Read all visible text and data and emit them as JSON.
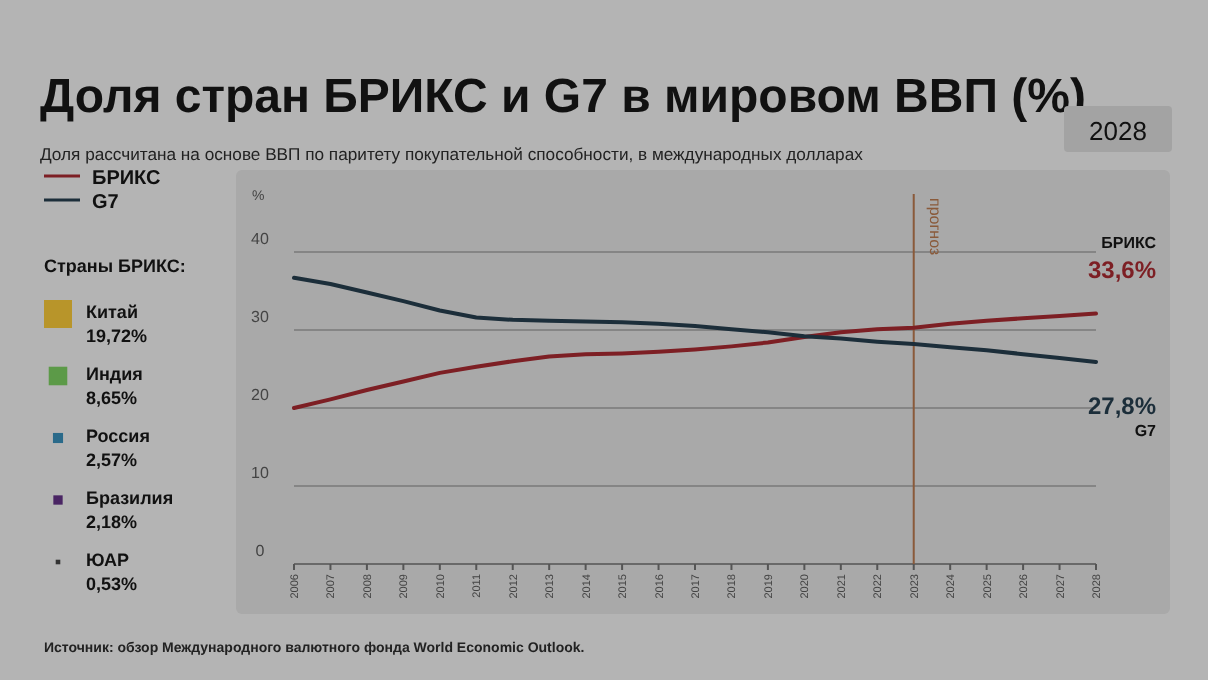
{
  "chart_data": [
    {
      "type": "line",
      "title": "Доля стран БРИКС и G7 в мировом ВВП (%)",
      "subtitle": "Доля рассчитана на основе ВВП по паритету покупательной способности, в международных долларах",
      "ylabel": "%",
      "x": [
        2006,
        2007,
        2008,
        2009,
        2010,
        2011,
        2012,
        2013,
        2014,
        2015,
        2016,
        2017,
        2018,
        2019,
        2020,
        2021,
        2022,
        2023,
        2024,
        2025,
        2026,
        2027,
        2028
      ],
      "series": [
        {
          "name": "БРИКС",
          "color": "#7d1f24",
          "values": [
            20.0,
            21.1,
            22.3,
            23.4,
            24.5,
            25.3,
            26.0,
            26.6,
            26.9,
            27.0,
            27.2,
            27.5,
            27.9,
            28.4,
            29.1,
            29.7,
            30.1,
            30.3,
            30.8,
            31.2,
            31.5,
            31.8,
            32.1
          ]
        },
        {
          "name": "G7",
          "color": "#1c2e3a",
          "values": [
            36.7,
            35.9,
            34.8,
            33.7,
            32.5,
            31.6,
            31.3,
            31.2,
            31.1,
            31.0,
            30.8,
            30.5,
            30.1,
            29.7,
            29.2,
            28.9,
            28.5,
            28.2,
            27.8,
            27.4,
            26.9,
            26.4,
            25.9
          ]
        }
      ],
      "xlim": [
        2006,
        2028
      ],
      "xticks": [
        2006,
        2007,
        2008,
        2009,
        2010,
        2011,
        2012,
        2013,
        2014,
        2015,
        2016,
        2017,
        2018,
        2019,
        2020,
        2021,
        2022,
        2023,
        2024,
        2025,
        2026,
        2027,
        2028
      ],
      "ylim": [
        0,
        40
      ],
      "yticks": [
        0,
        10,
        20,
        30,
        40
      ],
      "grid": "y",
      "legend": "top left",
      "line_style": "solid",
      "marker": "none",
      "ref_lines": [
        {
          "axis": "x",
          "value": 2023,
          "label": "прогноз",
          "color": "#8a5a3a"
        }
      ],
      "annotations": [
        "2028",
        "БРИКС",
        "33,6%",
        "27,8%",
        "G7",
        "Источник: обзор Международного валютного фонда World Economic Outlook."
      ]
    },
    {
      "type": "other",
      "title": "Страны БРИКС:",
      "categories": [
        "Китай",
        "Индия",
        "Россия",
        "Бразилия",
        "ЮАР"
      ],
      "values": [
        19.72,
        8.65,
        2.57,
        2.18,
        0.53
      ],
      "value_labels": [
        "19,72%",
        "8,65%",
        "2,57%",
        "2,18%",
        "0,53%"
      ],
      "colors": [
        "#b8952a",
        "#5c9a48",
        "#2a6a8a",
        "#4a2564",
        "#333333"
      ]
    }
  ]
}
